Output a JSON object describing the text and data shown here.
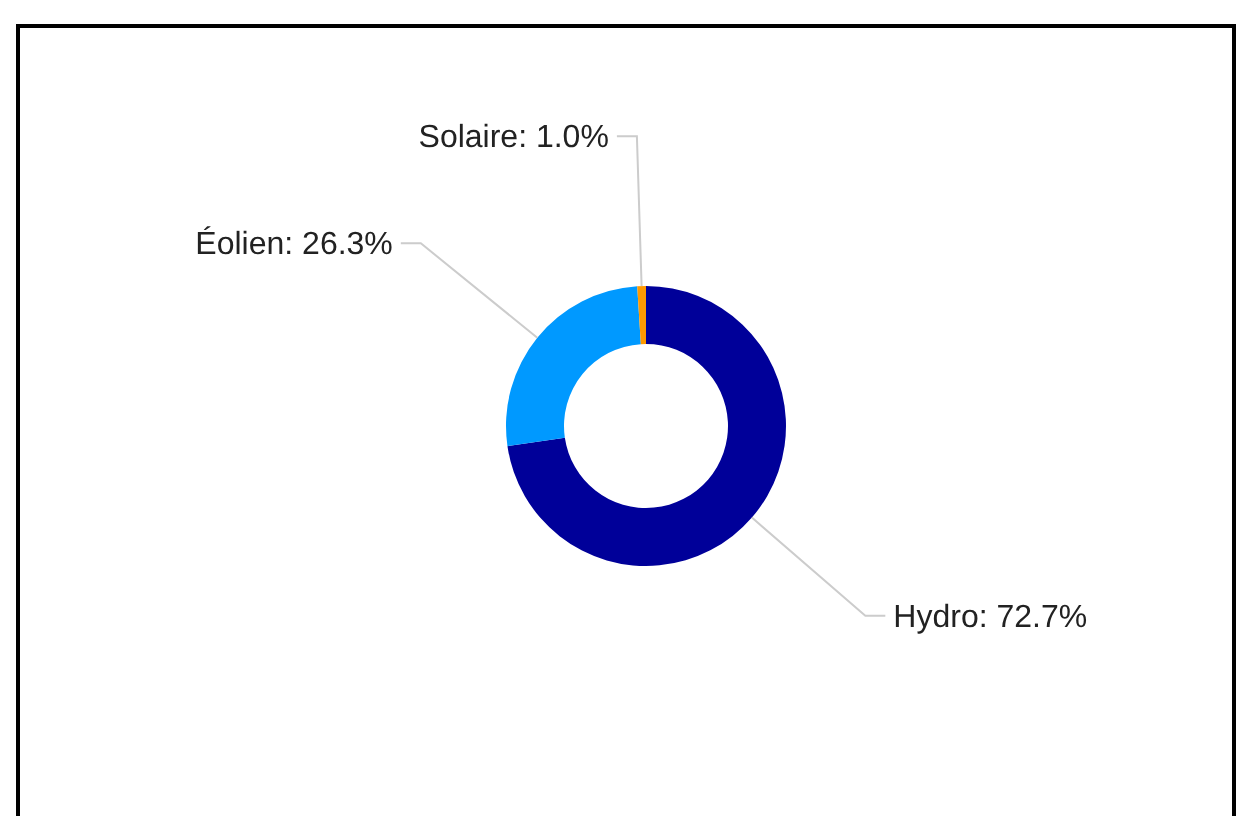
{
  "chart_data": {
    "type": "donut",
    "categories": [
      "Hydro",
      "Éolien",
      "Solaire"
    ],
    "values": [
      72.7,
      26.3,
      1.0
    ],
    "value_labels": [
      "72.7%",
      "26.3%",
      "1.0%"
    ],
    "colors": [
      "#000099",
      "#0099ff",
      "#ff9900"
    ]
  }
}
